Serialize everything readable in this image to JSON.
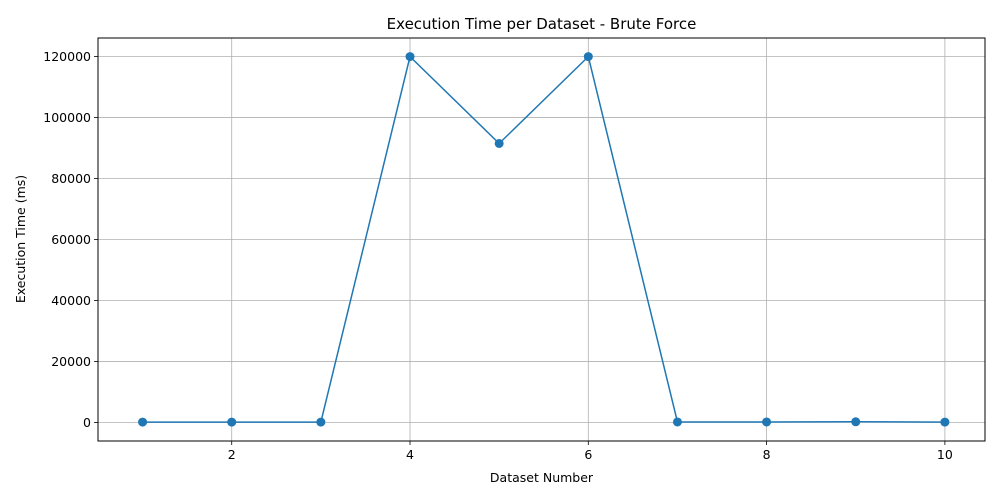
{
  "chart_data": {
    "type": "line",
    "title": "Execution Time per Dataset - Brute Force",
    "xlabel": "Dataset Number",
    "ylabel": "Execution Time (ms)",
    "x": [
      1,
      2,
      3,
      4,
      5,
      6,
      7,
      8,
      9,
      10
    ],
    "series": [
      {
        "values": [
          100,
          100,
          100,
          120000,
          91500,
          120000,
          150,
          150,
          200,
          100
        ],
        "color": "#1f77b4",
        "marker": "circle"
      }
    ],
    "xlim": [
      0.5,
      10.45
    ],
    "ylim": [
      -6100,
      126100
    ],
    "xticks": [
      2,
      4,
      6,
      8,
      10
    ],
    "yticks": [
      0,
      20000,
      40000,
      60000,
      80000,
      100000,
      120000
    ],
    "grid": true
  }
}
